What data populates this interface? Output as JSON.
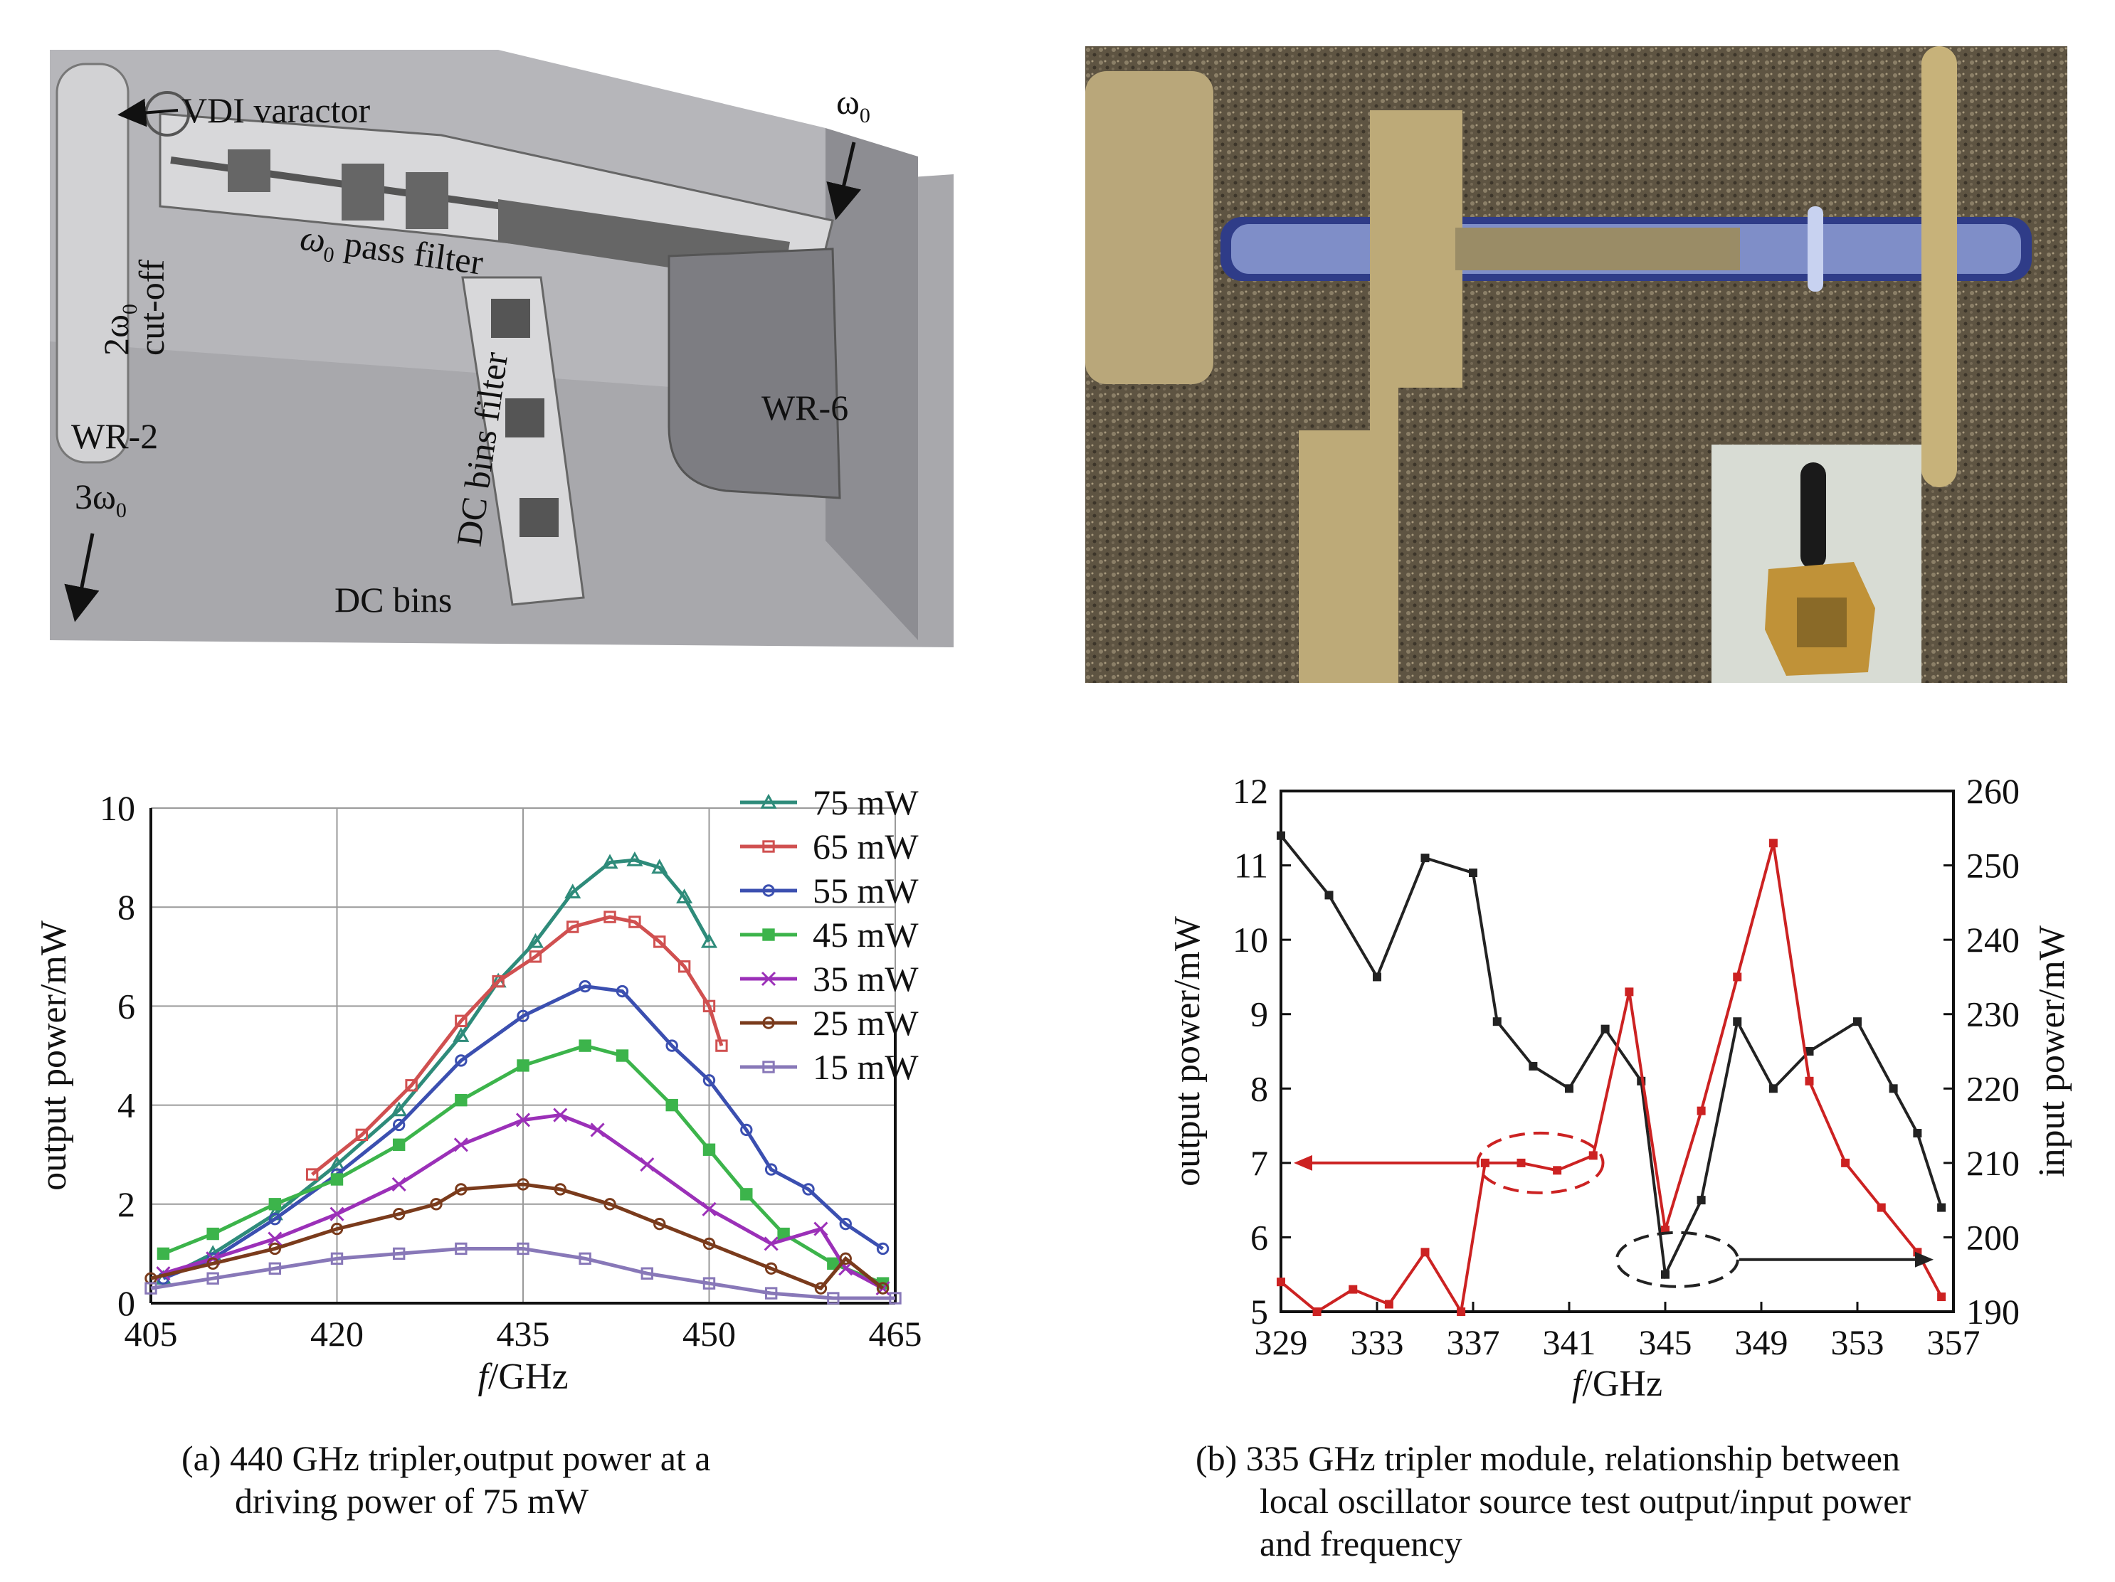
{
  "cad": {
    "labels": {
      "varactor": "VDI varactor",
      "omega_in": "ω",
      "omega_in_sub": "0",
      "pass_filter": "ω",
      "pass_filter_sub": "0",
      "pass_filter_rest": " pass filter",
      "cutoff_line1": "2ω",
      "cutoff_sub": "0",
      "cutoff_line2": "cut-off",
      "wr2": "WR-2",
      "out_freq": "3ω",
      "out_sub": "0",
      "dc_filter": "DC bins filter",
      "dc_bins": "DC bins",
      "wr6": "WR-6"
    }
  },
  "captions": {
    "a_line1": "(a) 440 GHz tripler,output power at a",
    "a_line2": "driving power of 75 mW",
    "b_line1": "(b) 335 GHz tripler module, relationship between",
    "b_line2": "local oscillator source test output/input power",
    "b_line3": "and frequency"
  },
  "chart_data": [
    {
      "type": "line",
      "xlabel_italic": "f",
      "xlabel_rest": "/GHz",
      "ylabel": "output power/mW",
      "xlim": [
        405,
        465
      ],
      "ylim": [
        0,
        10
      ],
      "xticks": [
        405,
        420,
        435,
        450,
        465
      ],
      "yticks": [
        0,
        2,
        4,
        6,
        8,
        10
      ],
      "grid": true,
      "legend_position": "top-right",
      "series": [
        {
          "name": "75 mW",
          "color": "#2e8b7a",
          "marker": "triangle",
          "x": [
            406,
            410,
            415,
            420,
            425,
            430,
            433,
            436,
            439,
            442,
            444,
            446,
            448,
            450
          ],
          "y": [
            0.5,
            1.0,
            1.8,
            2.8,
            3.9,
            5.4,
            6.5,
            7.3,
            8.3,
            8.9,
            8.95,
            8.8,
            8.2,
            7.3
          ]
        },
        {
          "name": "65 mW",
          "color": "#d05050",
          "marker": "square",
          "x": [
            418,
            422,
            426,
            430,
            433,
            436,
            439,
            442,
            444,
            446,
            448,
            450,
            451
          ],
          "y": [
            2.6,
            3.4,
            4.4,
            5.7,
            6.5,
            7.0,
            7.6,
            7.8,
            7.7,
            7.3,
            6.8,
            6.0,
            5.2
          ]
        },
        {
          "name": "55 mW",
          "color": "#3b4fb0",
          "marker": "circle",
          "x": [
            406,
            410,
            415,
            420,
            425,
            430,
            435,
            440,
            443,
            447,
            450,
            453,
            455,
            458,
            461,
            464
          ],
          "y": [
            0.5,
            0.9,
            1.7,
            2.6,
            3.6,
            4.9,
            5.8,
            6.4,
            6.3,
            5.2,
            4.5,
            3.5,
            2.7,
            2.3,
            1.6,
            1.1
          ]
        },
        {
          "name": "45 mW",
          "color": "#3cb44b",
          "marker": "square",
          "x": [
            406,
            410,
            415,
            420,
            425,
            430,
            435,
            440,
            443,
            447,
            450,
            453,
            456,
            460,
            464
          ],
          "y": [
            1.0,
            1.4,
            2.0,
            2.5,
            3.2,
            4.1,
            4.8,
            5.2,
            5.0,
            4.0,
            3.1,
            2.2,
            1.4,
            0.8,
            0.4
          ]
        },
        {
          "name": "35 mW",
          "color": "#9b30b8",
          "marker": "x",
          "x": [
            406,
            410,
            415,
            420,
            425,
            430,
            435,
            438,
            441,
            445,
            450,
            455,
            459,
            461,
            464
          ],
          "y": [
            0.6,
            0.9,
            1.3,
            1.8,
            2.4,
            3.2,
            3.7,
            3.8,
            3.5,
            2.8,
            1.9,
            1.2,
            1.5,
            0.7,
            0.3
          ]
        },
        {
          "name": "25 mW",
          "color": "#7a3b1c",
          "marker": "circle",
          "x": [
            405,
            410,
            415,
            420,
            425,
            428,
            430,
            435,
            438,
            442,
            446,
            450,
            455,
            459,
            461,
            464
          ],
          "y": [
            0.5,
            0.8,
            1.1,
            1.5,
            1.8,
            2.0,
            2.3,
            2.4,
            2.3,
            2.0,
            1.6,
            1.2,
            0.7,
            0.3,
            0.9,
            0.3
          ]
        },
        {
          "name": "15 mW",
          "color": "#8878b8",
          "marker": "square",
          "x": [
            405,
            410,
            415,
            420,
            425,
            430,
            435,
            440,
            445,
            450,
            455,
            460,
            465
          ],
          "y": [
            0.3,
            0.5,
            0.7,
            0.9,
            1.0,
            1.1,
            1.1,
            0.9,
            0.6,
            0.4,
            0.2,
            0.1,
            0.1
          ]
        }
      ]
    },
    {
      "type": "line",
      "xlabel_italic": "f",
      "xlabel_rest": "/GHz",
      "ylabel": "output power/mW",
      "y2label": "input power/mW",
      "xlim": [
        329,
        357
      ],
      "ylim": [
        5,
        12
      ],
      "y2lim": [
        190,
        260
      ],
      "xticks": [
        329,
        333,
        337,
        341,
        345,
        349,
        353,
        357
      ],
      "yticks": [
        5,
        6,
        7,
        8,
        9,
        10,
        11,
        12
      ],
      "y2ticks": [
        190,
        200,
        210,
        220,
        230,
        240,
        250,
        260
      ],
      "grid": false,
      "series": [
        {
          "name": "",
          "axis": "left",
          "color": "#222222",
          "x": [
            329,
            331,
            333,
            335,
            337,
            338,
            339.5,
            341,
            342.5,
            344,
            345,
            346.5,
            348,
            349.5,
            351,
            353,
            354.5,
            355.5,
            356.5
          ],
          "y": [
            11.4,
            10.6,
            9.5,
            11.1,
            10.9,
            8.9,
            8.3,
            8.0,
            8.8,
            8.1,
            5.5,
            6.5,
            8.9,
            8.0,
            8.5,
            8.9,
            8.0,
            7.4,
            6.4
          ]
        },
        {
          "name": "",
          "axis": "right",
          "color": "#cc2222",
          "x": [
            329,
            330.5,
            332,
            333.5,
            335,
            336.5,
            337.5,
            339,
            340.5,
            342,
            343.5,
            345,
            346.5,
            348,
            349.5,
            351,
            352.5,
            354,
            355.5,
            356.5
          ],
          "y": [
            194,
            190,
            193,
            191,
            198,
            190,
            210,
            210,
            209,
            211,
            233,
            201,
            217,
            235,
            253,
            221,
            210,
            204,
            198,
            192
          ]
        }
      ]
    }
  ]
}
